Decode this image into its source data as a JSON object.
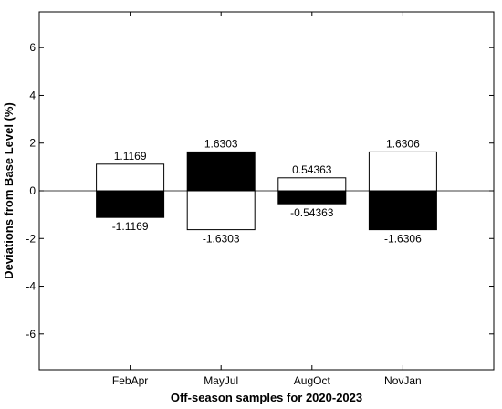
{
  "chart_data": {
    "type": "bar",
    "xlabel": "Off-season samples for 2020-2023",
    "ylabel": "Deviations from Base Level (%)",
    "categories": [
      "FebApr",
      "MayJul",
      "AugOct",
      "NovJan"
    ],
    "series": [
      {
        "values": [
          1.1169,
          1.6303,
          0.54363,
          1.6306
        ],
        "fill": [
          "#ffffff",
          "#000000",
          "#ffffff",
          "#ffffff"
        ]
      },
      {
        "values": [
          -1.1169,
          -1.6303,
          -0.54363,
          -1.6306
        ],
        "fill": [
          "#000000",
          "#ffffff",
          "#000000",
          "#000000"
        ]
      }
    ],
    "data_labels": {
      "positive": [
        "1.1169",
        "1.6303",
        "0.54363",
        "1.6306"
      ],
      "negative": [
        "-1.1169",
        "-1.6303",
        "-0.54363",
        "-1.6306"
      ]
    },
    "ylim": [
      -7.5,
      7.5
    ],
    "yticks": [
      -6,
      -4,
      -2,
      0,
      2,
      4,
      6
    ],
    "xlim": [
      0,
      5
    ],
    "x_positions": [
      1,
      2,
      3,
      4
    ],
    "zero_line": true,
    "grid": false,
    "legend": "none"
  }
}
